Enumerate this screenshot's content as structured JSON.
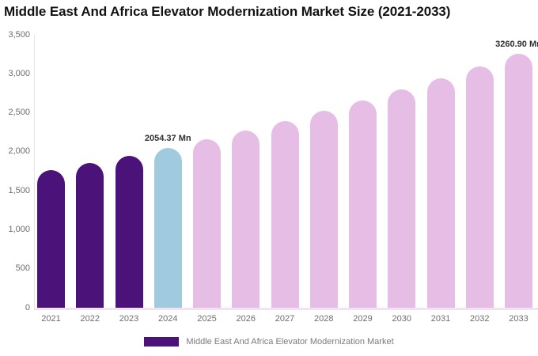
{
  "title": "Middle East And Africa Elevator Modernization Market Size (2021-2033)",
  "chart_data": {
    "type": "bar",
    "title": "Middle East And Africa Elevator Modernization Market Size (2021-2033)",
    "unit": "Mn",
    "categories": [
      "2021",
      "2022",
      "2023",
      "2024",
      "2025",
      "2026",
      "2027",
      "2028",
      "2029",
      "2030",
      "2031",
      "2032",
      "2033"
    ],
    "values": [
      1761,
      1854,
      1951,
      2054.37,
      2163,
      2277,
      2397,
      2523,
      2656,
      2796,
      2943,
      3098,
      3260.9
    ],
    "bar_segments": [
      "historical",
      "historical",
      "historical",
      "base_year",
      "forecast",
      "forecast",
      "forecast",
      "forecast",
      "forecast",
      "forecast",
      "forecast",
      "forecast",
      "forecast"
    ],
    "segment_colors": {
      "historical": "#4b1379",
      "base_year": "#a0cadd",
      "forecast": "#e5bde5"
    },
    "annotations": [
      {
        "category": "2024",
        "text": "2054.37 Mn"
      },
      {
        "category": "2033",
        "text": "3260.90 Mn"
      }
    ],
    "ylim": [
      0,
      3500
    ],
    "yticks": [
      0,
      500,
      1000,
      1500,
      2000,
      2500,
      3000,
      3500
    ],
    "ytick_labels": [
      "0",
      "500",
      "1,000",
      "1,500",
      "2,000",
      "2,500",
      "3,000",
      "3,500"
    ],
    "grid": false,
    "legend": {
      "position": "bottom",
      "items": [
        {
          "label": "Middle East And Africa Elevator Modernization Market",
          "color": "#4b1379"
        }
      ]
    }
  },
  "theme": {
    "title_text": "#121212",
    "tick_text": "#6d6d6d",
    "axis_line": "#e4e4e4",
    "baseline_strip": "#f1e3f1",
    "annotation_text": "#2f2f2f",
    "legend_text": "#7a7a7a"
  }
}
